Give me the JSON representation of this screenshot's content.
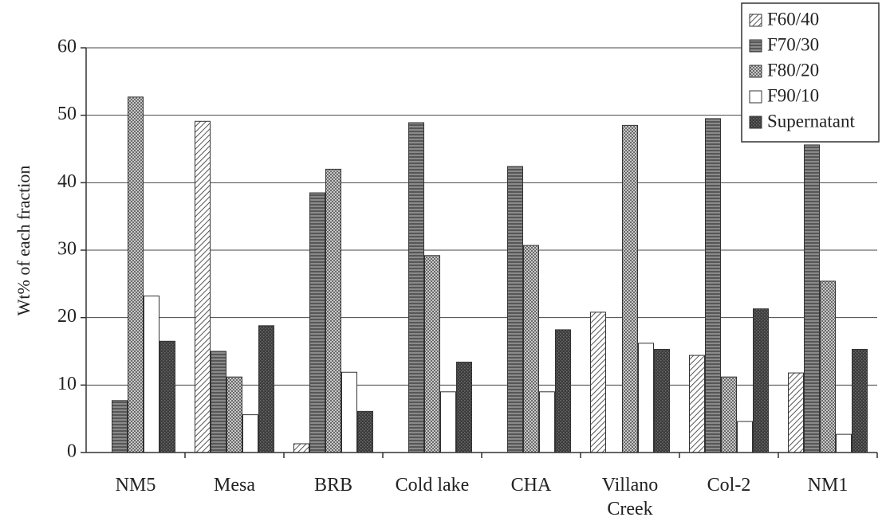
{
  "chart_data": {
    "type": "bar",
    "title": "",
    "xlabel": "",
    "ylabel": "Wt% of each fraction",
    "ylim": [
      0,
      60
    ],
    "yticks": [
      0,
      10,
      20,
      30,
      40,
      50,
      60
    ],
    "grid": true,
    "legend_position": "top-right",
    "categories": [
      [
        "NM5"
      ],
      [
        "Mesa"
      ],
      [
        "BRB"
      ],
      [
        "Cold lake"
      ],
      [
        "CHA"
      ],
      [
        "Villano",
        "Creek"
      ],
      [
        "Col-2"
      ],
      [
        "NM1"
      ]
    ],
    "series": [
      {
        "name": "F60/40",
        "pattern": "diagonal",
        "values": [
          0,
          49.1,
          1.3,
          0,
          0,
          20.8,
          14.4,
          11.8
        ]
      },
      {
        "name": "F70/30",
        "pattern": "horizontal",
        "values": [
          7.7,
          15.0,
          38.5,
          48.9,
          42.4,
          0,
          49.5,
          45.6
        ]
      },
      {
        "name": "F80/20",
        "pattern": "crosshatch",
        "values": [
          52.7,
          11.2,
          42.0,
          29.2,
          30.7,
          48.5,
          11.2,
          25.4
        ]
      },
      {
        "name": "F90/10",
        "pattern": "white",
        "values": [
          23.2,
          5.6,
          11.9,
          9.0,
          9.0,
          16.2,
          4.6,
          2.7
        ]
      },
      {
        "name": "Supernatant",
        "pattern": "dark",
        "values": [
          16.5,
          18.8,
          6.1,
          13.4,
          18.2,
          15.3,
          21.3,
          15.3
        ]
      }
    ],
    "colors": {
      "axis": "#333333",
      "grid": "#444444",
      "bar_outline": "#333333",
      "dark_fill": "#3a3a3a",
      "pattern_line": "#555555"
    }
  }
}
